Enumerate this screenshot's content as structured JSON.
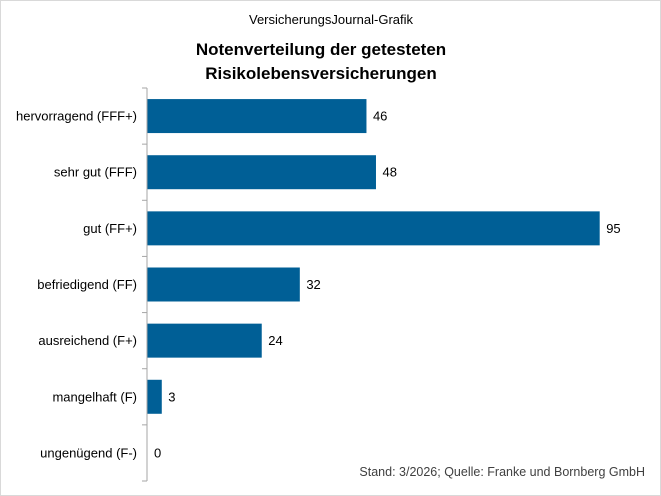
{
  "header": {
    "source_line": "VersicherungsJournal-Grafik"
  },
  "chart_data": {
    "type": "bar",
    "orientation": "horizontal",
    "title_lines": [
      "Notenverteilung der getesteten",
      "Risikolebensversicherungen"
    ],
    "categories": [
      "hervorragend (FFF+)",
      "sehr gut (FFF)",
      "gut (FF+)",
      "befriedigend (FF)",
      "ausreichend (F+)",
      "mangelhaft (F)",
      "ungenügend (F-)"
    ],
    "values": [
      46,
      48,
      95,
      32,
      24,
      3,
      0
    ],
    "xlim": [
      0,
      100
    ],
    "grid": false,
    "data_labels": true,
    "bar_color": "#005f96",
    "axis_color": "#a6a6a6"
  },
  "footer": {
    "note": "Stand: 3/2026; Quelle: Franke und Bornberg GmbH"
  }
}
